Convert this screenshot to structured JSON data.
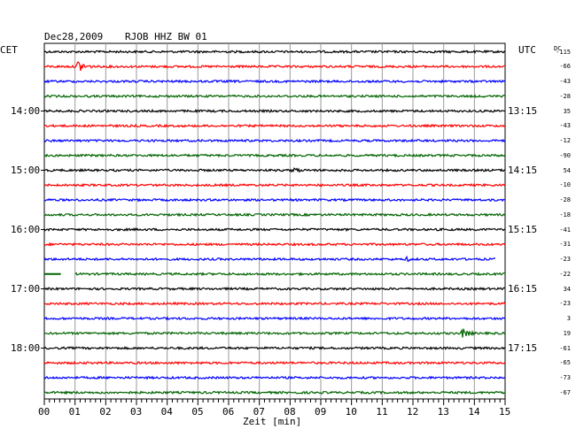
{
  "header": {
    "date": "Dec28,2009",
    "station": "RJOB HHZ BW 01",
    "left_tz": "CET",
    "right_tz": "UTC",
    "dc_label": "DC"
  },
  "chart_data": {
    "type": "line",
    "title": "Dec28,2009  RJOB HHZ BW 01",
    "xlabel": "Zeit [min]",
    "xlim": [
      0,
      15
    ],
    "x_ticks": [
      "00",
      "01",
      "02",
      "03",
      "04",
      "05",
      "06",
      "07",
      "08",
      "09",
      "10",
      "11",
      "12",
      "13",
      "14",
      "15"
    ],
    "grid": true,
    "left_hour_labels": [
      {
        "row": 4,
        "label": "14:00"
      },
      {
        "row": 8,
        "label": "15:00"
      },
      {
        "row": 12,
        "label": "16:00"
      },
      {
        "row": 16,
        "label": "17:00"
      },
      {
        "row": 20,
        "label": "18:00"
      }
    ],
    "right_hour_labels": [
      {
        "row": 4,
        "label": "13:15"
      },
      {
        "row": 8,
        "label": "14:15"
      },
      {
        "row": 12,
        "label": "15:15"
      },
      {
        "row": 16,
        "label": "16:15"
      },
      {
        "row": 20,
        "label": "17:15"
      }
    ],
    "trace_colors": [
      "#000000",
      "#ff0000",
      "#0000ff",
      "#006400"
    ],
    "dc_offsets": [
      "-115",
      "-66",
      "-43",
      "-28",
      "35",
      "-43",
      "-12",
      "-90",
      "54",
      "-10",
      "-28",
      "-18",
      "-41",
      "-31",
      "-23",
      "-22",
      "34",
      "-23",
      "3",
      "19",
      "-61",
      "-65",
      "-73",
      "-67"
    ],
    "events": [
      {
        "row": 1,
        "minute": 1.1,
        "strength": 8
      },
      {
        "row": 8,
        "minute": 8.1,
        "strength": 4
      },
      {
        "row": 14,
        "minute": 11.8,
        "strength": 3
      },
      {
        "row": 19,
        "minute": 13.6,
        "strength": 6
      }
    ],
    "trace_end_minute": {
      "14": 14.7
    },
    "trace_start_minute": {
      "15": 1.0
    }
  }
}
